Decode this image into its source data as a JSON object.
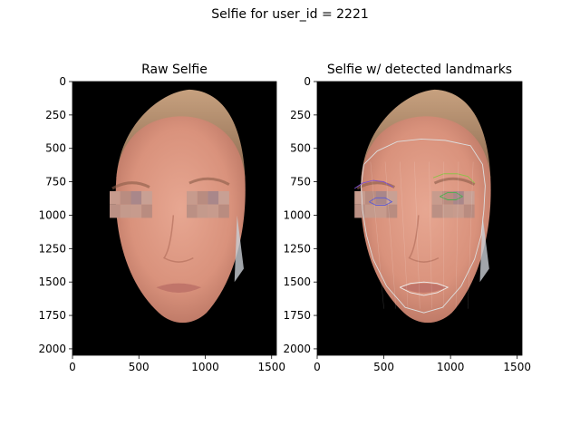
{
  "figure": {
    "suptitle": "Selfie for user_id = 2221"
  },
  "chart_data": [
    {
      "type": "image",
      "title": "Raw Selfie",
      "xlabel": "",
      "ylabel": "",
      "xlim": [
        0,
        1536
      ],
      "ylim": [
        2048,
        0
      ],
      "x_ticks": [
        0,
        500,
        1000,
        1500
      ],
      "y_ticks": [
        0,
        250,
        500,
        750,
        1000,
        1250,
        1500,
        1750,
        2000
      ],
      "background_color": "#000000",
      "face_color": "#d99a84",
      "hair_color": "#b58c6c",
      "blurred_eyes": true
    },
    {
      "type": "image",
      "title": "Selfie w/ detected landmarks",
      "xlabel": "",
      "ylabel": "",
      "xlim": [
        0,
        1536
      ],
      "ylim": [
        2048,
        0
      ],
      "x_ticks": [
        0,
        500,
        1000,
        1500
      ],
      "y_ticks": [
        0,
        250,
        500,
        750,
        1000,
        1250,
        1500,
        1750,
        2000
      ],
      "background_color": "#000000",
      "landmark_colors": {
        "face_contour": "#dddddd",
        "left_eyebrow": "#7b4fd0",
        "left_eye": "#5a5ad6",
        "right_eyebrow": "#8fc04a",
        "right_eye": "#4caf50",
        "mouth": "#eeeeee"
      },
      "landmarks": {
        "face_contour": [
          [
            350,
            620
          ],
          [
            330,
            780
          ],
          [
            340,
            960
          ],
          [
            370,
            1150
          ],
          [
            420,
            1330
          ],
          [
            520,
            1530
          ],
          [
            660,
            1690
          ],
          [
            800,
            1730
          ],
          [
            940,
            1690
          ],
          [
            1080,
            1530
          ],
          [
            1180,
            1330
          ],
          [
            1230,
            1150
          ],
          [
            1250,
            960
          ],
          [
            1260,
            780
          ],
          [
            1240,
            620
          ],
          [
            1150,
            480
          ],
          [
            960,
            440
          ],
          [
            780,
            430
          ],
          [
            600,
            450
          ],
          [
            450,
            520
          ],
          [
            350,
            620
          ]
        ],
        "left_eyebrow": [
          [
            280,
            800
          ],
          [
            340,
            760
          ],
          [
            420,
            740
          ],
          [
            500,
            750
          ],
          [
            570,
            790
          ]
        ],
        "left_eye": [
          [
            390,
            900
          ],
          [
            440,
            870
          ],
          [
            510,
            870
          ],
          [
            560,
            900
          ],
          [
            510,
            925
          ],
          [
            440,
            925
          ],
          [
            390,
            900
          ]
        ],
        "right_eyebrow": [
          [
            870,
            720
          ],
          [
            950,
            690
          ],
          [
            1050,
            690
          ],
          [
            1130,
            710
          ],
          [
            1180,
            760
          ]
        ],
        "right_eye": [
          [
            920,
            860
          ],
          [
            980,
            830
          ],
          [
            1040,
            830
          ],
          [
            1090,
            860
          ],
          [
            1040,
            885
          ],
          [
            980,
            885
          ],
          [
            920,
            860
          ]
        ],
        "mouth": [
          [
            620,
            1540
          ],
          [
            700,
            1510
          ],
          [
            800,
            1500
          ],
          [
            900,
            1510
          ],
          [
            980,
            1540
          ],
          [
            900,
            1580
          ],
          [
            800,
            1600
          ],
          [
            700,
            1580
          ],
          [
            620,
            1540
          ]
        ]
      }
    }
  ]
}
